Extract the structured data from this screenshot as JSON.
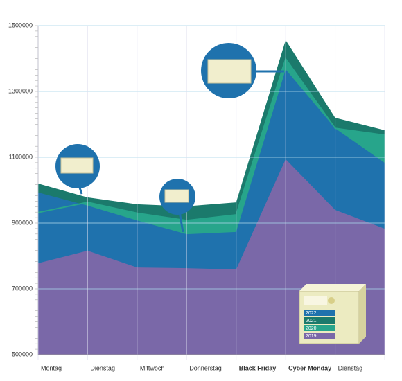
{
  "chart_data": {
    "type": "area",
    "categories": [
      "Montag",
      "Dienstag",
      "Mittwoch",
      "Donnerstag",
      "Black Friday",
      "Cyber Monday",
      "Dienstag",
      null
    ],
    "series": [
      {
        "name": "2021",
        "color": "#1b7a6c",
        "values": [
          1020000,
          978000,
          957000,
          951000,
          963000,
          1456000,
          1220000,
          1182000
        ]
      },
      {
        "name": "2020",
        "color": "#27a58b",
        "values": [
          932000,
          963000,
          930000,
          908000,
          925000,
          1399000,
          1188000,
          1167000
        ]
      },
      {
        "name": "2022",
        "color": "#1f72ad",
        "values": [
          993000,
          953000,
          908000,
          866000,
          873000,
          1367000,
          1188000,
          1083000
        ]
      },
      {
        "name": "2019",
        "color": "#7a68a8",
        "values": [
          778000,
          816000,
          765000,
          763000,
          759000,
          1094000,
          940000,
          883000
        ]
      }
    ],
    "ylim": [
      500000,
      1500000
    ],
    "yticks": [
      500000,
      700000,
      900000,
      1100000,
      1300000,
      1500000
    ],
    "grid": true
  }
}
